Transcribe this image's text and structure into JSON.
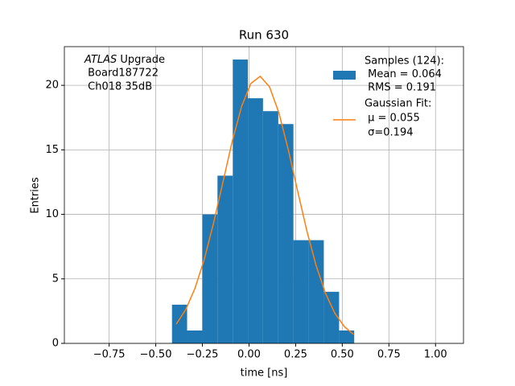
{
  "chart_data": {
    "type": "histogram",
    "title": "Run 630",
    "xlabel": "time [ns]",
    "ylabel": "Entries",
    "annotation": {
      "italic": "ATLAS",
      "rest": " Upgrade",
      "lines": [
        " Board187722",
        " Ch018 35dB"
      ]
    },
    "hist": {
      "name_lines": [
        "Samples (124):",
        " Mean = 0.064",
        " RMS = 0.191"
      ],
      "color": "#1f77b4",
      "bins": [
        -0.413,
        -0.332,
        -0.25,
        -0.169,
        -0.087,
        -0.006,
        0.075,
        0.157,
        0.238,
        0.32,
        0.401,
        0.483,
        0.564
      ],
      "counts": [
        3,
        1,
        10,
        13,
        22,
        19,
        18,
        17,
        8,
        8,
        4,
        1
      ]
    },
    "fit": {
      "name_lines": [
        "Gaussian Fit:",
        " μ = 0.055",
        " σ=0.194"
      ],
      "color": "#ff7f0e",
      "x": [
        -0.39,
        -0.34,
        -0.29,
        -0.24,
        -0.19,
        -0.14,
        -0.09,
        -0.04,
        0.01,
        0.06,
        0.11,
        0.16,
        0.21,
        0.26,
        0.31,
        0.36,
        0.41,
        0.46,
        0.51,
        0.56
      ],
      "values": [
        1.49,
        2.6,
        4.26,
        6.51,
        9.33,
        12.49,
        15.66,
        18.36,
        20.15,
        20.7,
        19.88,
        17.88,
        15.05,
        11.85,
        8.73,
        6.02,
        3.88,
        2.34,
        1.32,
        0.7
      ]
    },
    "xlim": [
      -0.99,
      1.15
    ],
    "ylim": [
      0,
      23
    ],
    "xticks": [
      {
        "value": -0.75,
        "label": "−0.75"
      },
      {
        "value": -0.5,
        "label": "−0.50"
      },
      {
        "value": -0.25,
        "label": "−0.25"
      },
      {
        "value": 0,
        "label": "0.00"
      },
      {
        "value": 0.25,
        "label": "0.25"
      },
      {
        "value": 0.5,
        "label": "0.50"
      },
      {
        "value": 0.75,
        "label": "0.75"
      },
      {
        "value": 1.0,
        "label": "1.00"
      }
    ],
    "yticks": [
      0,
      5,
      10,
      15,
      20
    ],
    "grid": true,
    "legend": "upper right"
  }
}
